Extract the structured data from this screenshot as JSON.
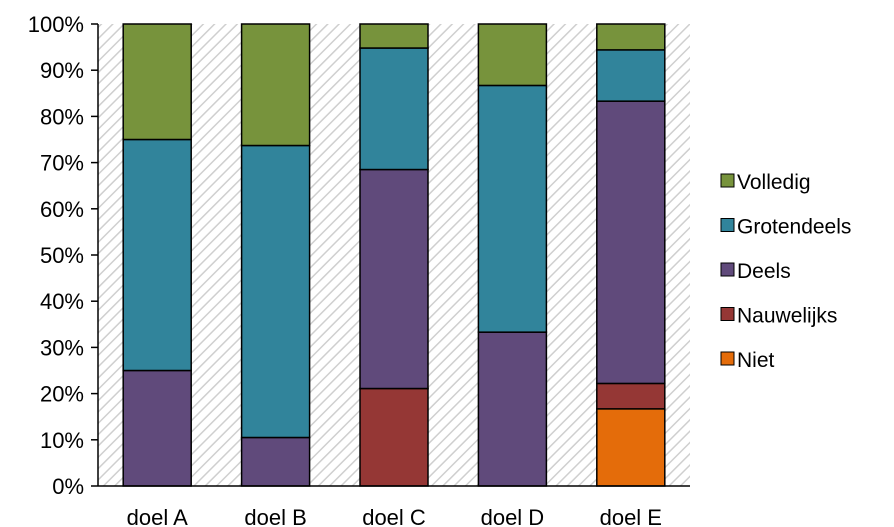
{
  "chart_data": {
    "type": "bar",
    "stacked": true,
    "normalized": true,
    "title": "",
    "xlabel": "",
    "ylabel": "",
    "ylim": [
      0,
      100
    ],
    "y_ticks": [
      "0%",
      "10%",
      "20%",
      "30%",
      "40%",
      "50%",
      "60%",
      "70%",
      "80%",
      "90%",
      "100%"
    ],
    "grid": false,
    "plot_background": "diagonal-hatch",
    "categories": [
      "doel A",
      "doel B",
      "doel C",
      "doel D",
      "doel E"
    ],
    "series": [
      {
        "name": "Niet",
        "color": "#E46C0A",
        "values": [
          0,
          0,
          0,
          0,
          16.7
        ]
      },
      {
        "name": "Nauwelijks",
        "color": "#953735",
        "values": [
          0,
          0,
          21.1,
          0,
          5.5
        ]
      },
      {
        "name": "Deels",
        "color": "#604A7B",
        "values": [
          25,
          10.5,
          47.4,
          33.3,
          61.1
        ]
      },
      {
        "name": "Grotendeels",
        "color": "#31849B",
        "values": [
          50,
          63.2,
          26.3,
          53.4,
          11.1
        ]
      },
      {
        "name": "Volledig",
        "color": "#77933C",
        "values": [
          25,
          26.3,
          5.2,
          13.3,
          5.6
        ]
      }
    ],
    "legend": {
      "position": "right",
      "order": [
        "Volledig",
        "Grotendeels",
        "Deels",
        "Nauwelijks",
        "Niet"
      ]
    }
  }
}
